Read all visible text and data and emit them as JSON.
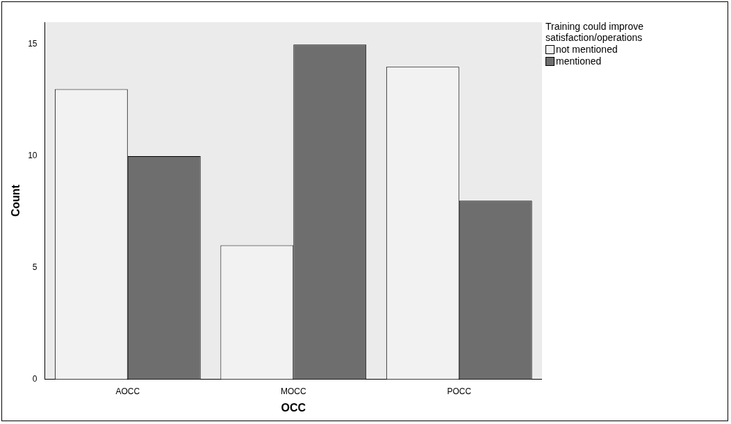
{
  "chart_data": {
    "type": "bar",
    "xlabel": "OCC",
    "ylabel": "Count",
    "legend_title": "Training could improve satisfaction/operations",
    "categories": [
      "AOCC",
      "MOCC",
      "POCC"
    ],
    "series": [
      {
        "name": "not mentioned",
        "color": "#f2f2f2",
        "values": [
          13,
          6,
          14
        ]
      },
      {
        "name": "mentioned",
        "color": "#6e6e6e",
        "values": [
          10,
          15,
          8
        ]
      }
    ],
    "ylim": [
      0,
      16
    ],
    "yticks": [
      0,
      5,
      10,
      15
    ],
    "grid": false,
    "legend": "top right"
  }
}
